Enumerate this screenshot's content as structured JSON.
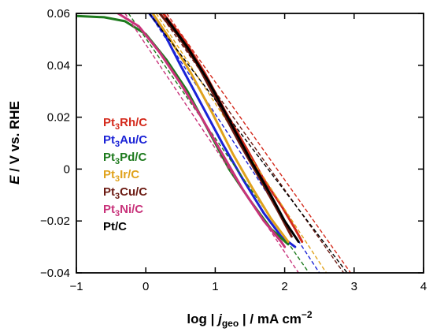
{
  "chart_data": {
    "type": "line",
    "title": "",
    "xlabel": {
      "prefix": "log | ",
      "j": "j",
      "sub": "geo",
      "suffix": " | / mA cm",
      "sup": "−2"
    },
    "ylabel": {
      "italic": "E",
      "rest": " / V vs. RHE"
    },
    "xlim": [
      -1,
      4
    ],
    "ylim": [
      -0.04,
      0.06
    ],
    "xticks": [
      -1,
      0,
      1,
      2,
      3,
      4
    ],
    "xtick_labels": [
      "−1",
      "0",
      "1",
      "2",
      "3",
      "4"
    ],
    "yticks": [
      -0.04,
      -0.02,
      0,
      0.02,
      0.04,
      0.06
    ],
    "ytick_labels": [
      "−0.04",
      "−0.02",
      "0",
      "0.02",
      "0.04",
      "0.06"
    ],
    "grid": false,
    "legend_position": "center-left",
    "series": [
      {
        "name": "Pt3Rh/C",
        "label": {
          "a": "Pt",
          "sub": "3",
          "b": "Rh/C"
        },
        "color": "#d42a1c",
        "x": [
          0.25,
          0.55,
          0.85,
          1.15,
          1.45,
          1.7,
          1.95,
          2.15,
          2.25
        ],
        "y": [
          0.06,
          0.05,
          0.037,
          0.022,
          0.008,
          -0.004,
          -0.014,
          -0.023,
          -0.028
        ],
        "tafel_x": [
          0.3,
          2.95
        ],
        "tafel_y": [
          0.06,
          -0.04
        ]
      },
      {
        "name": "Pt3Au/C",
        "label": {
          "a": "Pt",
          "sub": "3",
          "b": "Au/C"
        },
        "color": "#1a22d6",
        "x": [
          0.05,
          0.25,
          0.5,
          0.8,
          1.1,
          1.4,
          1.7,
          1.95,
          2.15
        ],
        "y": [
          0.06,
          0.053,
          0.04,
          0.025,
          0.01,
          -0.004,
          -0.017,
          -0.026,
          -0.03
        ],
        "tafel_x": [
          0.05,
          2.5
        ],
        "tafel_y": [
          0.06,
          -0.04
        ]
      },
      {
        "name": "Pt3Pd/C",
        "label": {
          "a": "Pt",
          "sub": "3",
          "b": "Pd/C"
        },
        "color": "#1d7a1d",
        "x": [
          -1.0,
          -0.6,
          -0.3,
          0.0,
          0.3,
          0.6,
          0.9,
          1.2,
          1.5,
          1.8,
          2.05
        ],
        "y": [
          0.059,
          0.0585,
          0.057,
          0.052,
          0.042,
          0.03,
          0.015,
          0.0,
          -0.012,
          -0.023,
          -0.029
        ],
        "tafel_x": [
          -0.25,
          2.35
        ],
        "tafel_y": [
          0.06,
          -0.04
        ]
      },
      {
        "name": "Pt3Ir/C",
        "label": {
          "a": "Pt",
          "sub": "3",
          "b": "Ir/C"
        },
        "color": "#e0a21c",
        "x": [
          0.1,
          0.35,
          0.65,
          0.95,
          1.25,
          1.55,
          1.8,
          2.05
        ],
        "y": [
          0.06,
          0.05,
          0.037,
          0.022,
          0.006,
          -0.008,
          -0.019,
          -0.028
        ],
        "tafel_x": [
          0.15,
          2.6
        ],
        "tafel_y": [
          0.06,
          -0.04
        ]
      },
      {
        "name": "Pt3Cu/C",
        "label": {
          "a": "Pt",
          "sub": "3",
          "b": "Cu/C"
        },
        "color": "#6b1a12",
        "x": [
          0.2,
          0.45,
          0.75,
          1.05,
          1.35,
          1.65,
          1.9,
          2.1
        ],
        "y": [
          0.06,
          0.052,
          0.04,
          0.025,
          0.01,
          -0.004,
          -0.016,
          -0.026
        ],
        "tafel_x": [
          0.2,
          2.85
        ],
        "tafel_y": [
          0.06,
          -0.04
        ]
      },
      {
        "name": "Pt3Ni/C",
        "label": {
          "a": "Pt",
          "sub": "3",
          "b": "Ni/C"
        },
        "color": "#c8327a",
        "x": [
          -0.4,
          -0.1,
          0.2,
          0.5,
          0.8,
          1.1,
          1.4,
          1.7,
          1.95,
          2.0
        ],
        "y": [
          0.06,
          0.055,
          0.045,
          0.033,
          0.02,
          0.006,
          -0.008,
          -0.02,
          -0.028,
          -0.03
        ],
        "tafel_x": [
          -0.3,
          2.2
        ],
        "tafel_y": [
          0.06,
          -0.04
        ]
      },
      {
        "name": "Pt/C",
        "label": {
          "a": "Pt/C",
          "sub": "",
          "b": ""
        },
        "color": "#000000",
        "x": [
          0.3,
          0.6,
          0.9,
          1.2,
          1.5,
          1.8,
          2.0,
          2.2
        ],
        "y": [
          0.058,
          0.047,
          0.034,
          0.019,
          0.004,
          -0.01,
          -0.02,
          -0.028
        ],
        "tafel_x": [
          0.05,
          2.9
        ],
        "tafel_y": [
          0.06,
          -0.04
        ]
      }
    ]
  }
}
